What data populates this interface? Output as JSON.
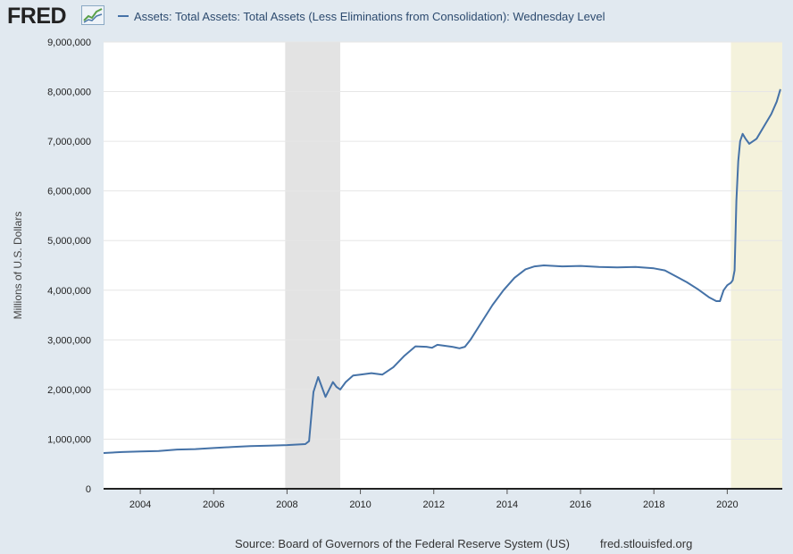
{
  "branding": {
    "logo_text": "FRED"
  },
  "footer": {
    "source": "Source: Board of Governors of the Federal Reserve System (US)",
    "site": "fred.stlouisfed.org"
  },
  "colors": {
    "line": "#4572a7",
    "recession_shade": "#e3e3e3",
    "highlight_shade": "#f4f2dc",
    "page_background": "#e1e9f0",
    "plot_background": "#ffffff",
    "grid": "#e6e6e6"
  },
  "chart_data": {
    "type": "line",
    "title": "",
    "ylabel": "Millions of U.S. Dollars",
    "xlabel": "",
    "ylim": [
      0,
      9000000
    ],
    "xlim": [
      2003.0,
      2021.5
    ],
    "y_ticks": [
      0,
      1000000,
      2000000,
      3000000,
      4000000,
      5000000,
      6000000,
      7000000,
      8000000,
      9000000
    ],
    "y_tick_labels": [
      "0",
      "1,000,000",
      "2,000,000",
      "3,000,000",
      "4,000,000",
      "5,000,000",
      "6,000,000",
      "7,000,000",
      "8,000,000",
      "9,000,000"
    ],
    "x_ticks": [
      2004,
      2006,
      2008,
      2010,
      2012,
      2014,
      2016,
      2018,
      2020
    ],
    "x_tick_labels": [
      "2004",
      "2006",
      "2008",
      "2010",
      "2012",
      "2014",
      "2016",
      "2018",
      "2020"
    ],
    "grid": true,
    "legend_position": "top",
    "shaded_periods": [
      {
        "start": 2007.95,
        "end": 2009.45,
        "kind": "recession"
      },
      {
        "start": 2020.1,
        "end": 2021.5,
        "kind": "highlight"
      }
    ],
    "series": [
      {
        "name": "Assets: Total Assets: Total Assets (Less Eliminations from Consolidation): Wednesday Level",
        "x": [
          2003.0,
          2003.5,
          2004.0,
          2004.5,
          2005.0,
          2005.5,
          2006.0,
          2006.5,
          2007.0,
          2007.5,
          2008.0,
          2008.5,
          2008.6,
          2008.72,
          2008.85,
          2008.95,
          2009.05,
          2009.15,
          2009.25,
          2009.35,
          2009.45,
          2009.6,
          2009.8,
          2010.0,
          2010.3,
          2010.6,
          2010.9,
          2011.2,
          2011.5,
          2011.8,
          2011.95,
          2012.1,
          2012.3,
          2012.5,
          2012.7,
          2012.85,
          2013.0,
          2013.3,
          2013.6,
          2013.9,
          2014.2,
          2014.5,
          2014.75,
          2015.0,
          2015.5,
          2016.0,
          2016.5,
          2017.0,
          2017.5,
          2018.0,
          2018.3,
          2018.6,
          2018.9,
          2019.2,
          2019.5,
          2019.7,
          2019.8,
          2019.9,
          2020.0,
          2020.1,
          2020.15,
          2020.2,
          2020.25,
          2020.3,
          2020.35,
          2020.42,
          2020.5,
          2020.6,
          2020.8,
          2021.0,
          2021.2,
          2021.35,
          2021.45
        ],
        "values": [
          720000,
          740000,
          750000,
          760000,
          790000,
          800000,
          820000,
          840000,
          860000,
          870000,
          880000,
          900000,
          960000,
          1950000,
          2250000,
          2050000,
          1850000,
          2000000,
          2150000,
          2050000,
          2000000,
          2150000,
          2280000,
          2300000,
          2330000,
          2300000,
          2450000,
          2680000,
          2870000,
          2860000,
          2840000,
          2900000,
          2880000,
          2860000,
          2830000,
          2860000,
          3000000,
          3350000,
          3700000,
          4000000,
          4250000,
          4420000,
          4480000,
          4500000,
          4480000,
          4490000,
          4470000,
          4460000,
          4470000,
          4440000,
          4400000,
          4280000,
          4160000,
          4020000,
          3860000,
          3780000,
          3780000,
          4000000,
          4100000,
          4150000,
          4200000,
          4400000,
          5800000,
          6600000,
          7000000,
          7150000,
          7050000,
          6950000,
          7050000,
          7300000,
          7550000,
          7800000,
          8050000
        ]
      }
    ]
  }
}
